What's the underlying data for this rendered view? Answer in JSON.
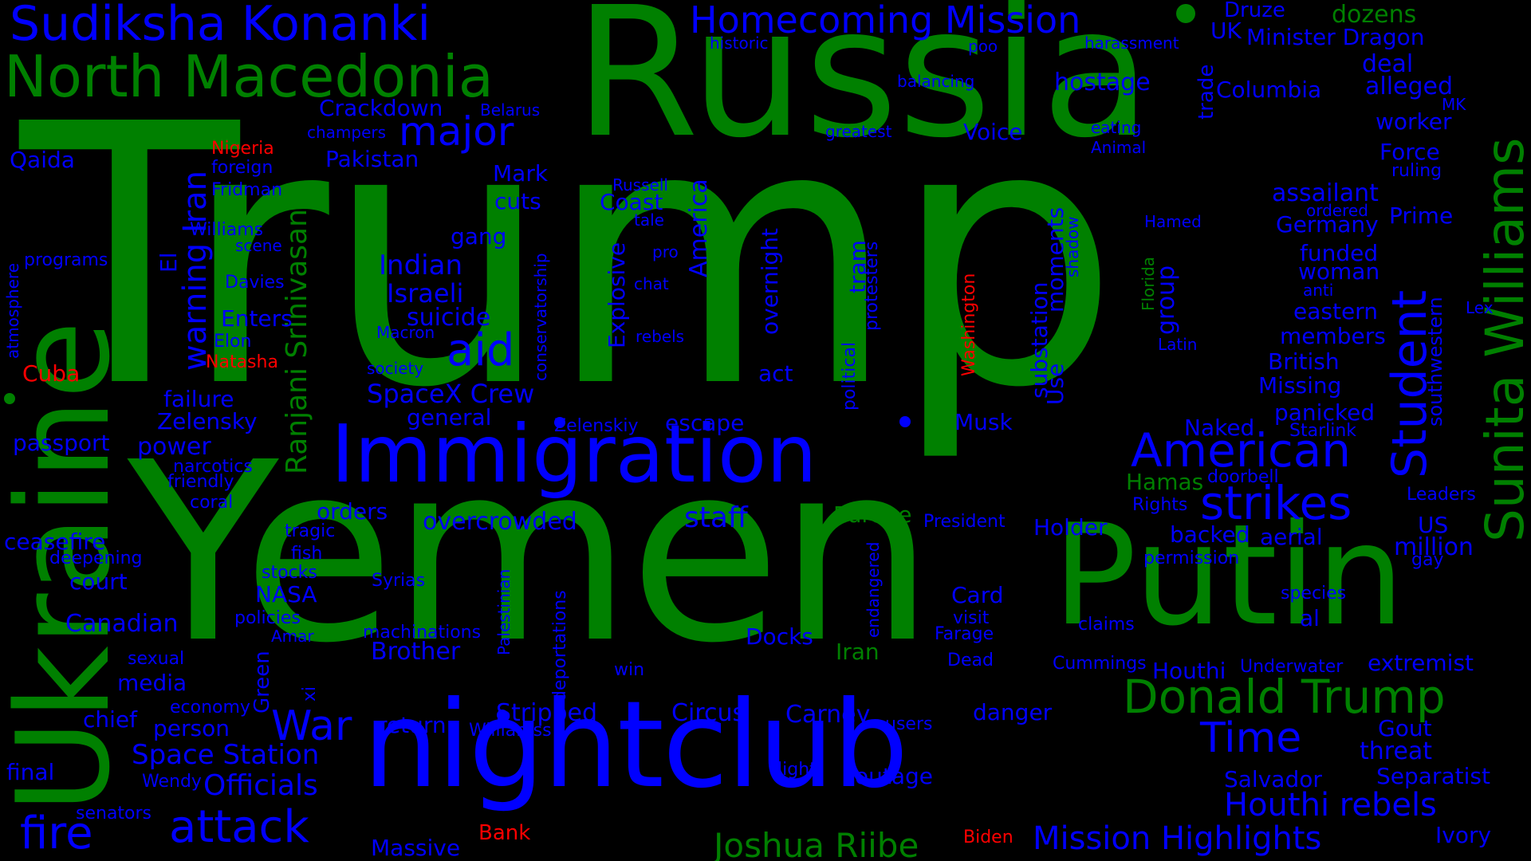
{
  "colors": {
    "green": "#008000",
    "blue": "#0000ff",
    "red": "#ff0000",
    "background": "#000000"
  },
  "words": [
    {
      "text": "Trump",
      "color": "green"
    },
    {
      "text": "Russia",
      "color": "green"
    },
    {
      "text": "Yemen",
      "color": "green"
    },
    {
      "text": "Ukraine",
      "color": "green"
    },
    {
      "text": "Putin",
      "color": "green"
    },
    {
      "text": "nightclub",
      "color": "blue"
    },
    {
      "text": "Immigration",
      "color": "blue"
    },
    {
      "text": "Sudiksha Konanki",
      "color": "blue"
    },
    {
      "text": "North Macedonia",
      "color": "green"
    },
    {
      "text": "Homecoming Mission",
      "color": "blue"
    },
    {
      "text": "Sunita Williams",
      "color": "green"
    },
    {
      "text": "Donald Trump",
      "color": "green"
    },
    {
      "text": "American",
      "color": "blue"
    },
    {
      "text": "strikes",
      "color": "blue"
    },
    {
      "text": "Student",
      "color": "blue"
    },
    {
      "text": "War",
      "color": "blue"
    },
    {
      "text": "aid",
      "color": "blue"
    },
    {
      "text": "major",
      "color": "blue"
    },
    {
      "text": "attack",
      "color": "blue"
    },
    {
      "text": "fire",
      "color": "blue"
    },
    {
      "text": "Time",
      "color": "blue"
    },
    {
      "text": "Joshua Riibe",
      "color": "green"
    },
    {
      "text": "Mission Highlights",
      "color": "blue"
    },
    {
      "text": "Houthi rebels",
      "color": "blue"
    },
    {
      "text": "SpaceX Crew",
      "color": "blue"
    },
    {
      "text": "Space Station",
      "color": "blue"
    },
    {
      "text": "Officials",
      "color": "blue"
    },
    {
      "text": "Ranjani Srinivasan",
      "color": "green"
    },
    {
      "text": "warning Iran",
      "color": "blue"
    },
    {
      "text": "Indian",
      "color": "blue"
    },
    {
      "text": "Israeli",
      "color": "blue"
    },
    {
      "text": "suicide",
      "color": "blue"
    },
    {
      "text": "Circus",
      "color": "blue"
    },
    {
      "text": "Carney",
      "color": "blue"
    },
    {
      "text": "Stripped",
      "color": "blue"
    },
    {
      "text": "staff",
      "color": "blue"
    },
    {
      "text": "overcrowded",
      "color": "blue"
    },
    {
      "text": "Brother",
      "color": "blue"
    },
    {
      "text": "Druze",
      "color": "blue"
    },
    {
      "text": "dozens",
      "color": "green"
    },
    {
      "text": "UK",
      "color": "blue"
    },
    {
      "text": "Minister Dragon",
      "color": "blue"
    },
    {
      "text": "deal",
      "color": "blue"
    },
    {
      "text": "alleged",
      "color": "blue"
    },
    {
      "text": "Columbia",
      "color": "blue"
    },
    {
      "text": "hostage",
      "color": "blue"
    },
    {
      "text": "worker",
      "color": "blue"
    },
    {
      "text": "Force",
      "color": "blue"
    },
    {
      "text": "assailant",
      "color": "blue"
    },
    {
      "text": "Prime",
      "color": "blue"
    },
    {
      "text": "Germany",
      "color": "blue"
    },
    {
      "text": "funded",
      "color": "blue"
    },
    {
      "text": "woman",
      "color": "blue"
    },
    {
      "text": "eastern",
      "color": "blue"
    },
    {
      "text": "members",
      "color": "blue"
    },
    {
      "text": "British",
      "color": "blue"
    },
    {
      "text": "Missing",
      "color": "blue"
    },
    {
      "text": "panicked",
      "color": "blue"
    },
    {
      "text": "Naked",
      "color": "blue"
    },
    {
      "text": "Hamas",
      "color": "green"
    },
    {
      "text": "backed",
      "color": "blue"
    },
    {
      "text": "aerial",
      "color": "blue"
    },
    {
      "text": "million",
      "color": "blue"
    },
    {
      "text": "US",
      "color": "blue"
    },
    {
      "text": "al",
      "color": "blue"
    },
    {
      "text": "extremist",
      "color": "blue"
    },
    {
      "text": "Houthi",
      "color": "blue"
    },
    {
      "text": "Gout",
      "color": "blue"
    },
    {
      "text": "threat",
      "color": "blue"
    },
    {
      "text": "Separatist",
      "color": "blue"
    },
    {
      "text": "Salvador",
      "color": "blue"
    },
    {
      "text": "Ivory",
      "color": "blue"
    },
    {
      "text": "Qaida",
      "color": "blue"
    },
    {
      "text": "Crackdown",
      "color": "blue"
    },
    {
      "text": "Pakistan",
      "color": "blue"
    },
    {
      "text": "Mark",
      "color": "blue"
    },
    {
      "text": "cuts",
      "color": "blue"
    },
    {
      "text": "gang",
      "color": "blue"
    },
    {
      "text": "Coast",
      "color": "blue"
    },
    {
      "text": "Voice",
      "color": "blue"
    },
    {
      "text": "Nigeria",
      "color": "red"
    },
    {
      "text": "Cuba",
      "color": "red"
    },
    {
      "text": "Natasha",
      "color": "red"
    },
    {
      "text": "Bank",
      "color": "red"
    },
    {
      "text": "Biden",
      "color": "red"
    },
    {
      "text": "Washington",
      "color": "red"
    },
    {
      "text": "foreign",
      "color": "blue"
    },
    {
      "text": "Fridman",
      "color": "blue"
    },
    {
      "text": "Williams",
      "color": "blue"
    },
    {
      "text": "scene",
      "color": "blue"
    },
    {
      "text": "programs",
      "color": "blue"
    },
    {
      "text": "Davies",
      "color": "blue"
    },
    {
      "text": "Enters",
      "color": "blue"
    },
    {
      "text": "Elon",
      "color": "blue"
    },
    {
      "text": "failure",
      "color": "blue"
    },
    {
      "text": "Zelensky",
      "color": "blue"
    },
    {
      "text": "passport",
      "color": "blue"
    },
    {
      "text": "power",
      "color": "blue"
    },
    {
      "text": "narcotics",
      "color": "blue"
    },
    {
      "text": "friendly",
      "color": "blue"
    },
    {
      "text": "coral",
      "color": "blue"
    },
    {
      "text": "ceasefire",
      "color": "blue"
    },
    {
      "text": "deepening",
      "color": "blue"
    },
    {
      "text": "court",
      "color": "blue"
    },
    {
      "text": "Canadian",
      "color": "blue"
    },
    {
      "text": "sexual",
      "color": "blue"
    },
    {
      "text": "media",
      "color": "blue"
    },
    {
      "text": "economy",
      "color": "blue"
    },
    {
      "text": "chief",
      "color": "blue"
    },
    {
      "text": "person",
      "color": "blue"
    },
    {
      "text": "final",
      "color": "blue"
    },
    {
      "text": "Wendy",
      "color": "blue"
    },
    {
      "text": "senators",
      "color": "blue"
    },
    {
      "text": "Massive",
      "color": "blue"
    },
    {
      "text": "return",
      "color": "blue"
    },
    {
      "text": "Williamss",
      "color": "blue"
    },
    {
      "text": "orders",
      "color": "blue"
    },
    {
      "text": "tragic",
      "color": "blue"
    },
    {
      "text": "fish",
      "color": "blue"
    },
    {
      "text": "stocks",
      "color": "blue"
    },
    {
      "text": "NASA",
      "color": "blue"
    },
    {
      "text": "policies",
      "color": "blue"
    },
    {
      "text": "Amar",
      "color": "blue"
    },
    {
      "text": "Syrias",
      "color": "blue"
    },
    {
      "text": "machinations",
      "color": "blue"
    },
    {
      "text": "general",
      "color": "blue"
    },
    {
      "text": "Zelenskiy",
      "color": "blue"
    },
    {
      "text": "escape",
      "color": "blue"
    },
    {
      "text": "Musk",
      "color": "blue"
    },
    {
      "text": "Europe",
      "color": "green"
    },
    {
      "text": "President",
      "color": "blue"
    },
    {
      "text": "Holder",
      "color": "blue"
    },
    {
      "text": "Card",
      "color": "blue"
    },
    {
      "text": "visit",
      "color": "blue"
    },
    {
      "text": "Farage",
      "color": "blue"
    },
    {
      "text": "Docks",
      "color": "blue"
    },
    {
      "text": "Iran",
      "color": "green"
    },
    {
      "text": "Dead",
      "color": "blue"
    },
    {
      "text": "danger",
      "color": "blue"
    },
    {
      "text": "users",
      "color": "blue"
    },
    {
      "text": "light",
      "color": "blue"
    },
    {
      "text": "outage",
      "color": "blue"
    },
    {
      "text": "win",
      "color": "blue"
    },
    {
      "text": "Cummings",
      "color": "blue"
    },
    {
      "text": "Underwater",
      "color": "blue"
    },
    {
      "text": "claims",
      "color": "blue"
    },
    {
      "text": "species",
      "color": "blue"
    },
    {
      "text": "gay",
      "color": "blue"
    },
    {
      "text": "permission",
      "color": "blue"
    },
    {
      "text": "Rights",
      "color": "blue"
    },
    {
      "text": "doorbell",
      "color": "blue"
    },
    {
      "text": "Leaders",
      "color": "blue"
    },
    {
      "text": "Starlink",
      "color": "blue"
    },
    {
      "text": "Lex",
      "color": "blue"
    },
    {
      "text": "anti",
      "color": "blue"
    },
    {
      "text": "ordered",
      "color": "blue"
    },
    {
      "text": "ruling",
      "color": "blue"
    },
    {
      "text": "MK",
      "color": "blue"
    },
    {
      "text": "historic",
      "color": "blue"
    },
    {
      "text": "poo",
      "color": "blue"
    },
    {
      "text": "harassment",
      "color": "blue"
    },
    {
      "text": "balancing",
      "color": "blue"
    },
    {
      "text": "eating",
      "color": "blue"
    },
    {
      "text": "Animal",
      "color": "blue"
    },
    {
      "text": "greatest",
      "color": "blue"
    },
    {
      "text": "Russell",
      "color": "blue"
    },
    {
      "text": "tale",
      "color": "blue"
    },
    {
      "text": "pro",
      "color": "blue"
    },
    {
      "text": "chat",
      "color": "blue"
    },
    {
      "text": "rebels",
      "color": "blue"
    },
    {
      "text": "Macron",
      "color": "blue"
    },
    {
      "text": "society",
      "color": "blue"
    },
    {
      "text": "act",
      "color": "blue"
    },
    {
      "text": "Hamed",
      "color": "blue"
    },
    {
      "text": "Latin",
      "color": "blue"
    },
    {
      "text": "Belarus",
      "color": "blue"
    },
    {
      "text": "champers",
      "color": "blue"
    },
    {
      "text": "America",
      "color": "blue"
    },
    {
      "text": "overnight",
      "color": "blue"
    },
    {
      "text": "Explosive",
      "color": "blue"
    },
    {
      "text": "conservatorship",
      "color": "blue"
    },
    {
      "text": "political",
      "color": "blue"
    },
    {
      "text": "tram",
      "color": "blue"
    },
    {
      "text": "protesters",
      "color": "blue"
    },
    {
      "text": "substation",
      "color": "blue"
    },
    {
      "text": "moments",
      "color": "blue"
    },
    {
      "text": "Use",
      "color": "blue"
    },
    {
      "text": "shadow",
      "color": "blue"
    },
    {
      "text": "group",
      "color": "blue"
    },
    {
      "text": "Florida",
      "color": "green"
    },
    {
      "text": "trade",
      "color": "blue"
    },
    {
      "text": "southwestern",
      "color": "blue"
    },
    {
      "text": "atmosphere",
      "color": "blue"
    },
    {
      "text": "El",
      "color": "blue"
    },
    {
      "text": "Green",
      "color": "blue"
    },
    {
      "text": "xi",
      "color": "blue"
    },
    {
      "text": "Palestinian",
      "color": "blue"
    },
    {
      "text": "deportations",
      "color": "blue"
    },
    {
      "text": "endangered",
      "color": "blue"
    }
  ]
}
